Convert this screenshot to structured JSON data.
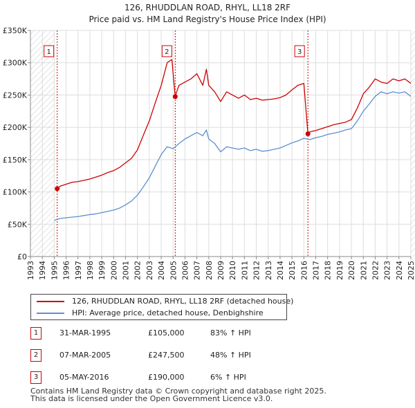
{
  "chart_data": {
    "type": "line",
    "title": "126, RHUDDLAN ROAD, RHYL, LL18 2RF",
    "subtitle": "Price paid vs. HM Land Registry's House Price Index (HPI)",
    "xlabel": "",
    "ylabel": "",
    "xlim": [
      1993.0,
      2025.0
    ],
    "ylim": [
      0,
      350000
    ],
    "y_ticks": [
      {
        "value": 0,
        "label": "£0"
      },
      {
        "value": 50000,
        "label": "£50K"
      },
      {
        "value": 100000,
        "label": "£100K"
      },
      {
        "value": 150000,
        "label": "£150K"
      },
      {
        "value": 200000,
        "label": "£200K"
      },
      {
        "value": 250000,
        "label": "£250K"
      },
      {
        "value": 300000,
        "label": "£300K"
      },
      {
        "value": 350000,
        "label": "£350K"
      }
    ],
    "x_ticks": [
      "1993",
      "1994",
      "1995",
      "1996",
      "1997",
      "1998",
      "1999",
      "2000",
      "2001",
      "2002",
      "2003",
      "2004",
      "2005",
      "2006",
      "2007",
      "2008",
      "2009",
      "2010",
      "2011",
      "2012",
      "2013",
      "2014",
      "2015",
      "2016",
      "2017",
      "2018",
      "2019",
      "2020",
      "2021",
      "2022",
      "2023",
      "2024",
      "2025"
    ],
    "grid": true,
    "hatched_ranges": [
      [
        1993.0,
        1995.0
      ],
      [
        2025.0,
        2025.5
      ]
    ],
    "series": [
      {
        "name": "126, RHUDDLAN ROAD, RHYL, LL18 2RF (detached house)",
        "color": "#cc0000",
        "x": [
          1995.25,
          1995.5,
          1996.0,
          1996.5,
          1997.0,
          1997.5,
          1998.0,
          1998.5,
          1999.0,
          1999.5,
          2000.0,
          2000.5,
          2001.0,
          2001.5,
          2002.0,
          2002.5,
          2003.0,
          2003.5,
          2004.0,
          2004.5,
          2004.9,
          2005.18,
          2005.3,
          2005.5,
          2006.0,
          2006.5,
          2007.0,
          2007.5,
          2007.8,
          2008.0,
          2008.5,
          2009.0,
          2009.5,
          2010.0,
          2010.5,
          2011.0,
          2011.5,
          2012.0,
          2012.5,
          2013.0,
          2013.5,
          2014.0,
          2014.5,
          2015.0,
          2015.5,
          2016.0,
          2016.34,
          2016.5,
          2017.0,
          2017.5,
          2018.0,
          2018.5,
          2019.0,
          2019.5,
          2020.0,
          2020.5,
          2021.0,
          2021.5,
          2022.0,
          2022.5,
          2023.0,
          2023.5,
          2024.0,
          2024.5,
          2025.0
        ],
        "values": [
          105000,
          109000,
          112000,
          115000,
          116000,
          118000,
          120000,
          123000,
          126000,
          130000,
          133000,
          138000,
          145000,
          152000,
          165000,
          188000,
          210000,
          238000,
          265000,
          300000,
          305000,
          247500,
          255000,
          265000,
          270000,
          275000,
          283000,
          265000,
          290000,
          265000,
          255000,
          240000,
          255000,
          250000,
          245000,
          250000,
          243000,
          245000,
          242000,
          243000,
          244000,
          246000,
          250000,
          258000,
          265000,
          268000,
          190000,
          193000,
          195000,
          198000,
          201000,
          204000,
          206000,
          208000,
          212000,
          230000,
          252000,
          262000,
          275000,
          270000,
          268000,
          275000,
          272000,
          275000,
          268000
        ]
      },
      {
        "name": "HPI: Average price, detached house, Denbighshire",
        "color": "#5b8fcf",
        "x": [
          1995.0,
          1995.5,
          1996.0,
          1996.5,
          1997.0,
          1997.5,
          1998.0,
          1998.5,
          1999.0,
          1999.5,
          2000.0,
          2000.5,
          2001.0,
          2001.5,
          2002.0,
          2002.5,
          2003.0,
          2003.5,
          2004.0,
          2004.5,
          2005.0,
          2005.5,
          2006.0,
          2006.5,
          2007.0,
          2007.5,
          2007.8,
          2008.0,
          2008.5,
          2009.0,
          2009.5,
          2010.0,
          2010.5,
          2011.0,
          2011.5,
          2012.0,
          2012.5,
          2013.0,
          2013.5,
          2014.0,
          2014.5,
          2015.0,
          2015.5,
          2016.0,
          2016.5,
          2017.0,
          2017.5,
          2018.0,
          2018.5,
          2019.0,
          2019.5,
          2020.0,
          2020.5,
          2021.0,
          2021.5,
          2022.0,
          2022.5,
          2023.0,
          2023.5,
          2024.0,
          2024.5,
          2025.0
        ],
        "values": [
          56000,
          59000,
          60000,
          61000,
          62000,
          63500,
          65000,
          66000,
          68000,
          70000,
          72000,
          75000,
          80000,
          86000,
          95000,
          108000,
          122000,
          140000,
          158000,
          170000,
          167000,
          175000,
          182000,
          187000,
          192000,
          187000,
          196000,
          182000,
          175000,
          162000,
          170000,
          168000,
          166000,
          168000,
          164000,
          166000,
          163000,
          164000,
          166000,
          168000,
          172000,
          176000,
          179000,
          183000,
          181000,
          184000,
          186000,
          189000,
          191000,
          193000,
          196000,
          198000,
          210000,
          225000,
          236000,
          248000,
          255000,
          252000,
          255000,
          253000,
          255000,
          248000
        ]
      }
    ],
    "sales": [
      {
        "label": "1",
        "x": 1995.25,
        "value": 105000
      },
      {
        "label": "2",
        "x": 2005.18,
        "value": 247500
      },
      {
        "label": "3",
        "x": 2016.34,
        "value": 190000
      }
    ]
  },
  "legend": {
    "property_label": "126, RHUDDLAN ROAD, RHYL, LL18 2RF (detached house)",
    "hpi_label": "HPI: Average price, detached house, Denbighshire",
    "property_color": "#cc0000",
    "hpi_color": "#5b8fcf"
  },
  "sales_table": [
    {
      "num": "1",
      "date": "31-MAR-1995",
      "price": "£105,000",
      "hpi": "83% ↑ HPI"
    },
    {
      "num": "2",
      "date": "07-MAR-2005",
      "price": "£247,500",
      "hpi": "48% ↑ HPI"
    },
    {
      "num": "3",
      "date": "05-MAY-2016",
      "price": "£190,000",
      "hpi": "6% ↑ HPI"
    }
  ],
  "footer": {
    "line1": "Contains HM Land Registry data © Crown copyright and database right 2025.",
    "line2": "This data is licensed under the Open Government Licence v3.0."
  }
}
